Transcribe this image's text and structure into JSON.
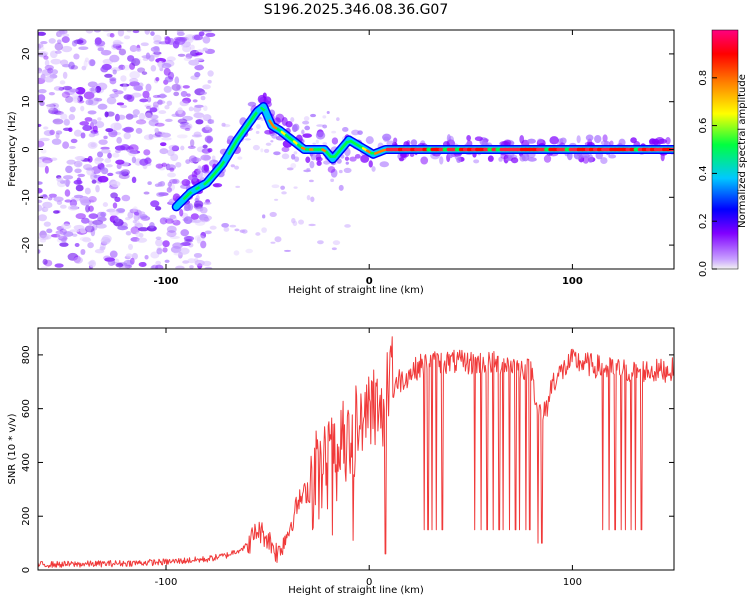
{
  "title": "S196.2025.346.08.36.G07",
  "chart_data": [
    {
      "type": "heatmap",
      "xlabel": "Height of straight line (km)",
      "ylabel": "Frequency (Hz)",
      "xlim": [
        -163,
        150
      ],
      "ylim": [
        -25,
        25
      ],
      "xticks": [
        -100,
        0,
        100
      ],
      "yticks": [
        -20,
        -10,
        0,
        10,
        20
      ],
      "colorbar": {
        "label": "Normalized spectral amplitude",
        "range": [
          0,
          1
        ],
        "ticks": [
          "0.0",
          "0.2",
          "0.4",
          "0.6",
          "0.8"
        ],
        "colormap": [
          "#ffffff",
          "#c9a3ff",
          "#8000ff",
          "#0000ff",
          "#00c8ff",
          "#00ff40",
          "#ffff00",
          "#ff8000",
          "#ff0000",
          "#ff0080"
        ]
      },
      "ridge": {
        "x": [
          -95,
          -88,
          -80,
          -72,
          -65,
          -60,
          -55,
          -52,
          -48,
          -44,
          -38,
          -32,
          -26,
          -22,
          -18,
          -14,
          -10,
          -6,
          -2,
          2,
          8,
          20,
          40,
          60,
          80,
          100,
          120,
          150
        ],
        "y": [
          -12,
          -9,
          -7,
          -3,
          2,
          5,
          8,
          9,
          5,
          4,
          2,
          0,
          0,
          0,
          -2,
          0,
          2,
          1,
          0,
          -1,
          0,
          0,
          0,
          0,
          0,
          0,
          0,
          0
        ]
      }
    },
    {
      "type": "line",
      "xlabel": "Height of straight line (km)",
      "ylabel": "SNR (10 * v/v)",
      "xlim": [
        -163,
        150
      ],
      "ylim": [
        0,
        900
      ],
      "xticks": [
        -100,
        0,
        100
      ],
      "yticks": [
        0,
        200,
        400,
        600,
        800
      ],
      "color": "#f03a3a",
      "envelope": {
        "x": [
          -163,
          -140,
          -120,
          -100,
          -80,
          -70,
          -60,
          -55,
          -50,
          -45,
          -40,
          -35,
          -30,
          -25,
          -20,
          -15,
          -10,
          -5,
          0,
          5,
          10,
          15,
          20,
          25,
          30,
          40,
          50,
          60,
          70,
          80,
          82,
          85,
          88,
          90,
          95,
          100,
          110,
          120,
          130,
          140,
          150
        ],
        "y": [
          20,
          22,
          25,
          30,
          40,
          55,
          90,
          150,
          120,
          60,
          140,
          250,
          300,
          340,
          400,
          430,
          440,
          520,
          560,
          600,
          660,
          700,
          730,
          760,
          770,
          775,
          770,
          770,
          765,
          740,
          640,
          560,
          620,
          700,
          740,
          780,
          760,
          745,
          740,
          740,
          745
        ]
      },
      "dropouts": {
        "x": [
          -28,
          -18,
          -8,
          8,
          27,
          29,
          31,
          33,
          36,
          52,
          55,
          58,
          61,
          64,
          66,
          69,
          72,
          74,
          77,
          79,
          83,
          85,
          115,
          118,
          121,
          124,
          126,
          129,
          131,
          134
        ],
        "y": [
          150,
          130,
          110,
          60,
          150,
          150,
          150,
          150,
          150,
          150,
          150,
          150,
          150,
          150,
          150,
          150,
          150,
          150,
          150,
          150,
          100,
          100,
          150,
          150,
          150,
          150,
          150,
          150,
          150,
          150
        ]
      }
    }
  ]
}
